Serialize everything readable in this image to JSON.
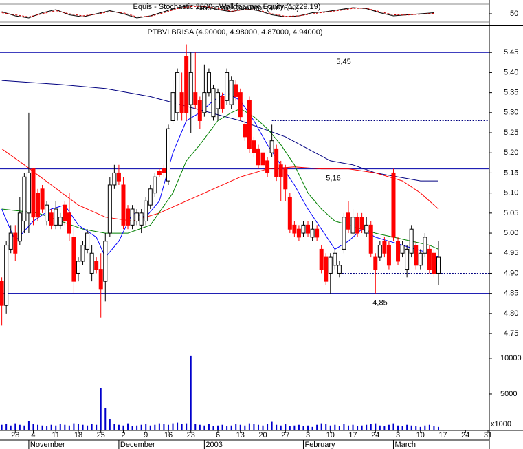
{
  "chart_data": [
    {
      "type": "line",
      "titles": [
        "Equis - Stochastic 2000 - Walkforward Equity (1,229.19)",
        "Stochastic Oscillator (49.7600)"
      ],
      "x": [
        -3,
        0,
        3,
        6,
        9,
        12,
        15,
        18,
        21,
        24,
        27,
        30,
        33,
        36,
        39,
        42,
        45,
        48,
        51,
        54,
        57,
        60,
        63,
        66,
        69,
        72,
        75,
        78,
        81,
        84,
        87,
        90,
        93
      ],
      "series": [
        {
          "color": "#000000",
          "values": [
            60,
            40,
            30,
            55,
            70,
            45,
            35,
            50,
            65,
            50,
            30,
            40,
            60,
            80,
            90,
            85,
            70,
            60,
            75,
            65,
            45,
            35,
            40,
            55,
            60,
            70,
            80,
            75,
            55,
            40,
            45,
            50,
            55
          ]
        },
        {
          "color": "#cc0000",
          "dash": true,
          "values": [
            55,
            45,
            35,
            50,
            65,
            50,
            40,
            48,
            60,
            55,
            35,
            38,
            55,
            75,
            85,
            87,
            75,
            62,
            70,
            68,
            50,
            38,
            40,
            50,
            58,
            66,
            76,
            77,
            60,
            45,
            44,
            48,
            52
          ]
        }
      ],
      "ylim": [
        0,
        100
      ],
      "yticks": [
        50
      ]
    },
    {
      "type": "candlestick",
      "title": "PTBVLBRISA (4.90000, 4.98000, 4.87000, 4.94000)",
      "x": [
        -3,
        -2,
        -1,
        0,
        1,
        2,
        3,
        4,
        5,
        6,
        7,
        8,
        9,
        10,
        11,
        12,
        13,
        14,
        15,
        16,
        17,
        18,
        19,
        20,
        21,
        22,
        23,
        24,
        25,
        26,
        27,
        28,
        29,
        30,
        31,
        32,
        33,
        34,
        35,
        36,
        37,
        38,
        39,
        40,
        41,
        42,
        43,
        44,
        45,
        46,
        47,
        48,
        49,
        50,
        51,
        52,
        53,
        54,
        55,
        56,
        57,
        58,
        59,
        60,
        61,
        62,
        63,
        64,
        65,
        66,
        67,
        68,
        69,
        70,
        71,
        72,
        73,
        74,
        75,
        76,
        77,
        78,
        79,
        80,
        81,
        82,
        83,
        84,
        85,
        86,
        87,
        88,
        89,
        90,
        91,
        92,
        93,
        94
      ],
      "open": [
        4.88,
        4.82,
        4.96,
        5.0,
        4.98,
        5.03,
        5.05,
        5.16,
        5.1,
        5.11,
        5.03,
        5.05,
        5.02,
        5.02,
        5.07,
        5.05,
        4.99,
        4.9,
        4.93,
        4.96,
        4.9,
        4.93,
        4.91,
        4.88,
        5.0,
        5.12,
        5.15,
        5.12,
        5.06,
        5.02,
        5.03,
        5.02,
        5.03,
        5.07,
        5.1,
        5.155,
        5.16,
        5.13,
        5.28,
        5.3,
        5.35,
        5.44,
        5.32,
        5.35,
        5.33,
        5.3,
        5.35,
        5.29,
        5.31,
        5.34,
        5.33,
        5.32,
        5.37,
        5.35,
        5.27,
        5.33,
        5.23,
        5.21,
        5.2,
        5.18,
        5.2,
        5.21,
        5.17,
        5.16,
        5.09,
        5.02,
        5.01,
        5.0,
        5.02,
        4.99,
        5.01,
        4.96,
        4.94,
        4.9,
        4.92,
        4.9,
        4.96,
        5.05,
        5.0,
        5.04,
        5.04,
        5.0,
        5.02,
        4.94,
        4.94,
        4.98,
        4.97,
        5.15,
        4.98,
        4.95,
        4.91,
        4.95,
        4.97,
        4.92,
        4.95,
        4.96,
        4.95,
        4.9
      ],
      "high": [
        4.89,
        4.98,
        5.02,
        5.02,
        5.09,
        5.15,
        5.3,
        5.16,
        5.11,
        5.12,
        5.08,
        5.06,
        5.08,
        5.05,
        5.08,
        5.1,
        5.02,
        4.94,
        4.98,
        5.01,
        4.97,
        4.94,
        4.95,
        5.0,
        5.14,
        5.17,
        5.17,
        5.14,
        5.07,
        5.07,
        5.06,
        5.06,
        5.09,
        5.12,
        5.15,
        5.16,
        5.17,
        5.27,
        5.38,
        5.41,
        5.4,
        5.47,
        5.45,
        5.45,
        5.34,
        5.42,
        5.41,
        5.37,
        5.36,
        5.35,
        5.41,
        5.39,
        5.38,
        5.36,
        5.28,
        5.34,
        5.24,
        5.22,
        5.21,
        5.19,
        5.27,
        5.22,
        5.18,
        5.17,
        5.1,
        5.03,
        5.02,
        5.03,
        5.03,
        5.03,
        5.02,
        4.97,
        4.95,
        4.95,
        4.96,
        4.93,
        5.05,
        5.08,
        5.06,
        5.05,
        5.05,
        5.04,
        5.03,
        4.95,
        4.98,
        4.99,
        4.98,
        5.16,
        4.99,
        4.98,
        4.97,
        5.02,
        4.98,
        4.96,
        5.0,
        4.97,
        4.96,
        4.98
      ],
      "low": [
        4.77,
        4.8,
        4.95,
        4.93,
        4.97,
        5.0,
        5.0,
        5.02,
        5.03,
        5.05,
        5.02,
        5.01,
        5.01,
        5.01,
        5.02,
        4.98,
        4.85,
        4.88,
        4.92,
        4.95,
        4.88,
        4.9,
        4.79,
        4.83,
        4.99,
        5.11,
        5.12,
        5.01,
        5.01,
        5.01,
        5.02,
        5.0,
        5.02,
        5.06,
        5.09,
        5.14,
        5.14,
        5.12,
        5.27,
        5.28,
        5.28,
        5.28,
        5.25,
        5.31,
        5.26,
        5.29,
        5.34,
        5.28,
        5.28,
        5.3,
        5.32,
        5.31,
        5.33,
        5.28,
        5.23,
        5.2,
        5.19,
        5.16,
        5.16,
        5.14,
        5.19,
        5.13,
        5.08,
        5.08,
        5.0,
        4.99,
        4.98,
        4.99,
        4.99,
        4.98,
        4.98,
        4.9,
        4.87,
        4.85,
        4.91,
        4.89,
        4.95,
        5.0,
        4.99,
        4.99,
        5.0,
        4.99,
        4.94,
        4.85,
        4.93,
        4.94,
        4.91,
        4.98,
        4.92,
        4.94,
        4.89,
        4.94,
        4.91,
        4.91,
        4.94,
        4.9,
        4.89,
        4.87
      ],
      "close": [
        4.82,
        4.97,
        5.0,
        4.95,
        5.05,
        5.14,
        5.15,
        5.04,
        5.04,
        5.06,
        5.07,
        5.02,
        5.06,
        5.04,
        5.03,
        5.0,
        4.88,
        4.93,
        4.97,
        5.0,
        4.95,
        4.91,
        4.86,
        4.98,
        5.12,
        5.15,
        5.13,
        5.02,
        5.02,
        5.06,
        5.05,
        5.05,
        5.08,
        5.11,
        5.14,
        5.145,
        5.15,
        5.26,
        5.35,
        5.4,
        5.3,
        5.3,
        5.4,
        5.32,
        5.28,
        5.35,
        5.4,
        5.36,
        5.35,
        5.31,
        5.4,
        5.38,
        5.34,
        5.29,
        5.24,
        5.21,
        5.2,
        5.17,
        5.17,
        5.15,
        5.23,
        5.14,
        5.14,
        5.11,
        5.01,
        5.0,
        4.99,
        5.02,
        5.0,
        5.01,
        4.99,
        4.91,
        4.88,
        4.94,
        4.95,
        4.92,
        5.04,
        5.01,
        5.04,
        5.0,
        5.01,
        5.02,
        4.95,
        4.91,
        4.97,
        4.95,
        4.92,
        4.99,
        4.93,
        4.97,
        4.96,
        5.01,
        4.92,
        4.95,
        4.99,
        4.91,
        4.9,
        4.94
      ],
      "up_color": "#ffffff",
      "down_color": "#ff0000",
      "ylim": [
        4.733,
        5.512
      ],
      "yticks": [
        4.75,
        {
          "value": 4.8,
          "label": "4.80"
        },
        4.85,
        {
          "value": 4.9,
          "label": "4.90"
        },
        4.95,
        {
          "value": 5.0,
          "label": "5.00"
        },
        5.05,
        {
          "value": 5.1,
          "label": "5.10"
        },
        5.15,
        {
          "value": 5.2,
          "label": "5.20"
        },
        5.25,
        {
          "value": 5.3,
          "label": "5.30"
        },
        5.35,
        {
          "value": 5.4,
          "label": "5.40"
        },
        5.45
      ],
      "levels": [
        {
          "value": 5.45,
          "label": "5,45"
        },
        {
          "value": 5.16,
          "label": "5,16"
        },
        {
          "value": 4.85,
          "label": "4,85"
        }
      ],
      "dashed_levels": [
        {
          "value": 5.28,
          "from": 57
        },
        {
          "value": 4.9,
          "from": 72
        }
      ],
      "series": [
        {
          "color": "#000080",
          "x": [
            -3,
            10,
            20,
            30,
            40,
            50,
            55,
            60,
            65,
            70,
            75,
            80,
            85,
            90,
            94
          ],
          "values": [
            5.38,
            5.37,
            5.36,
            5.34,
            5.31,
            5.28,
            5.26,
            5.24,
            5.21,
            5.18,
            5.17,
            5.15,
            5.14,
            5.13,
            5.13
          ]
        },
        {
          "color": "#ff0000",
          "x": [
            -3,
            2,
            8,
            14,
            20,
            26,
            32,
            38,
            44,
            50,
            56,
            62,
            68,
            74,
            80,
            86,
            90,
            94
          ],
          "values": [
            5.21,
            5.17,
            5.12,
            5.07,
            5.04,
            5.03,
            5.05,
            5.08,
            5.11,
            5.14,
            5.16,
            5.165,
            5.16,
            5.16,
            5.15,
            5.13,
            5.1,
            5.06
          ]
        },
        {
          "color": "#008000",
          "x": [
            -3,
            5,
            10,
            15,
            20,
            25,
            30,
            35,
            38,
            41,
            45,
            48,
            50,
            53,
            56,
            59,
            62,
            65,
            68,
            71,
            74,
            77,
            80,
            84,
            88,
            92,
            94
          ],
          "values": [
            5.06,
            5.05,
            5.03,
            5.01,
            5.0,
            5.0,
            5.02,
            5.1,
            5.18,
            5.22,
            5.28,
            5.3,
            5.31,
            5.29,
            5.26,
            5.22,
            5.17,
            5.1,
            5.06,
            5.03,
            5.02,
            5.01,
            5.0,
            4.99,
            4.98,
            4.97,
            4.96
          ]
        },
        {
          "color": "#0000ff",
          "x": [
            -3,
            0,
            4,
            8,
            11,
            14,
            18,
            20,
            23,
            26,
            29,
            32,
            35,
            38,
            41,
            44,
            47,
            50,
            53,
            56,
            59,
            62,
            65,
            68,
            71,
            74,
            77,
            80,
            83,
            86,
            89,
            92,
            94
          ],
          "values": [
            5.06,
            4.98,
            5.03,
            5.06,
            5.07,
            5.02,
            4.99,
            4.94,
            4.98,
            5.05,
            5.04,
            5.08,
            5.2,
            5.28,
            5.3,
            5.33,
            5.35,
            5.33,
            5.28,
            5.22,
            5.17,
            5.12,
            5.06,
            5.01,
            4.96,
            4.98,
            5.01,
            4.99,
            4.98,
            4.97,
            4.96,
            4.95,
            4.94
          ]
        }
      ]
    },
    {
      "type": "bar",
      "x": [
        -3,
        -2,
        -1,
        0,
        1,
        2,
        3,
        4,
        5,
        6,
        7,
        8,
        9,
        10,
        11,
        12,
        13,
        14,
        15,
        16,
        17,
        18,
        19,
        20,
        21,
        22,
        23,
        24,
        25,
        26,
        27,
        28,
        29,
        30,
        31,
        32,
        33,
        34,
        35,
        36,
        37,
        38,
        39,
        40,
        41,
        42,
        43,
        44,
        45,
        46,
        47,
        48,
        49,
        50,
        51,
        52,
        53,
        54,
        55,
        56,
        57,
        58,
        59,
        60,
        61,
        62,
        63,
        64,
        65,
        66,
        67,
        68,
        69,
        70,
        71,
        72,
        73,
        74,
        75,
        76,
        77,
        78,
        79,
        80,
        81,
        82,
        83,
        84,
        85,
        86,
        87,
        88,
        89,
        90,
        91,
        92,
        93,
        94
      ],
      "values": [
        700,
        800,
        600,
        900,
        700,
        600,
        1200,
        800,
        700,
        600,
        500,
        700,
        600,
        800,
        700,
        600,
        900,
        800,
        700,
        600,
        800,
        700,
        5800,
        3000,
        1500,
        800,
        700,
        600,
        900,
        500,
        600,
        700,
        800,
        600,
        700,
        900,
        800,
        700,
        900,
        1000,
        800,
        900,
        10300,
        800,
        700,
        600,
        800,
        500,
        600,
        700,
        500,
        600,
        800,
        700,
        600,
        900,
        800,
        700,
        600,
        800,
        1100,
        700,
        600,
        800,
        500,
        600,
        700,
        500,
        600,
        400,
        700,
        900,
        800,
        600,
        700,
        500,
        800,
        600,
        700,
        500,
        600,
        700,
        800,
        900,
        600,
        500,
        700,
        900,
        600,
        500,
        700,
        600,
        500,
        400,
        600,
        700,
        500,
        400
      ],
      "color": "#0000cc",
      "ylim": [
        0,
        12300
      ],
      "yticks": [
        5000,
        10000
      ],
      "unit_label": "x1000",
      "xlim": [
        -3.4,
        105.3
      ],
      "xticks": [
        {
          "value": 0,
          "label": "28"
        },
        {
          "value": 4,
          "label": "4"
        },
        {
          "value": 9,
          "label": "11"
        },
        {
          "value": 14,
          "label": "18"
        },
        {
          "value": 19,
          "label": "25"
        },
        {
          "value": 24,
          "label": "2"
        },
        {
          "value": 29,
          "label": "9"
        },
        {
          "value": 34,
          "label": "16"
        },
        {
          "value": 39,
          "label": "23"
        },
        {
          "value": 45,
          "label": "6"
        },
        {
          "value": 50,
          "label": "13"
        },
        {
          "value": 55,
          "label": "20"
        },
        {
          "value": 60,
          "label": "27"
        },
        {
          "value": 65,
          "label": "3"
        },
        {
          "value": 70,
          "label": "10"
        },
        {
          "value": 75,
          "label": "17"
        },
        {
          "value": 80,
          "label": "24"
        },
        {
          "value": 85,
          "label": "3"
        },
        {
          "value": 90,
          "label": "10"
        },
        {
          "value": 95,
          "label": "17"
        },
        {
          "value": 100,
          "label": "24"
        },
        {
          "value": 105,
          "label": "31"
        }
      ],
      "months": [
        {
          "value": 3,
          "label": "November"
        },
        {
          "value": 23,
          "label": "December"
        },
        {
          "value": 42,
          "label": "2003"
        },
        {
          "value": 64,
          "label": "February"
        },
        {
          "value": 84,
          "label": "March"
        }
      ]
    }
  ]
}
